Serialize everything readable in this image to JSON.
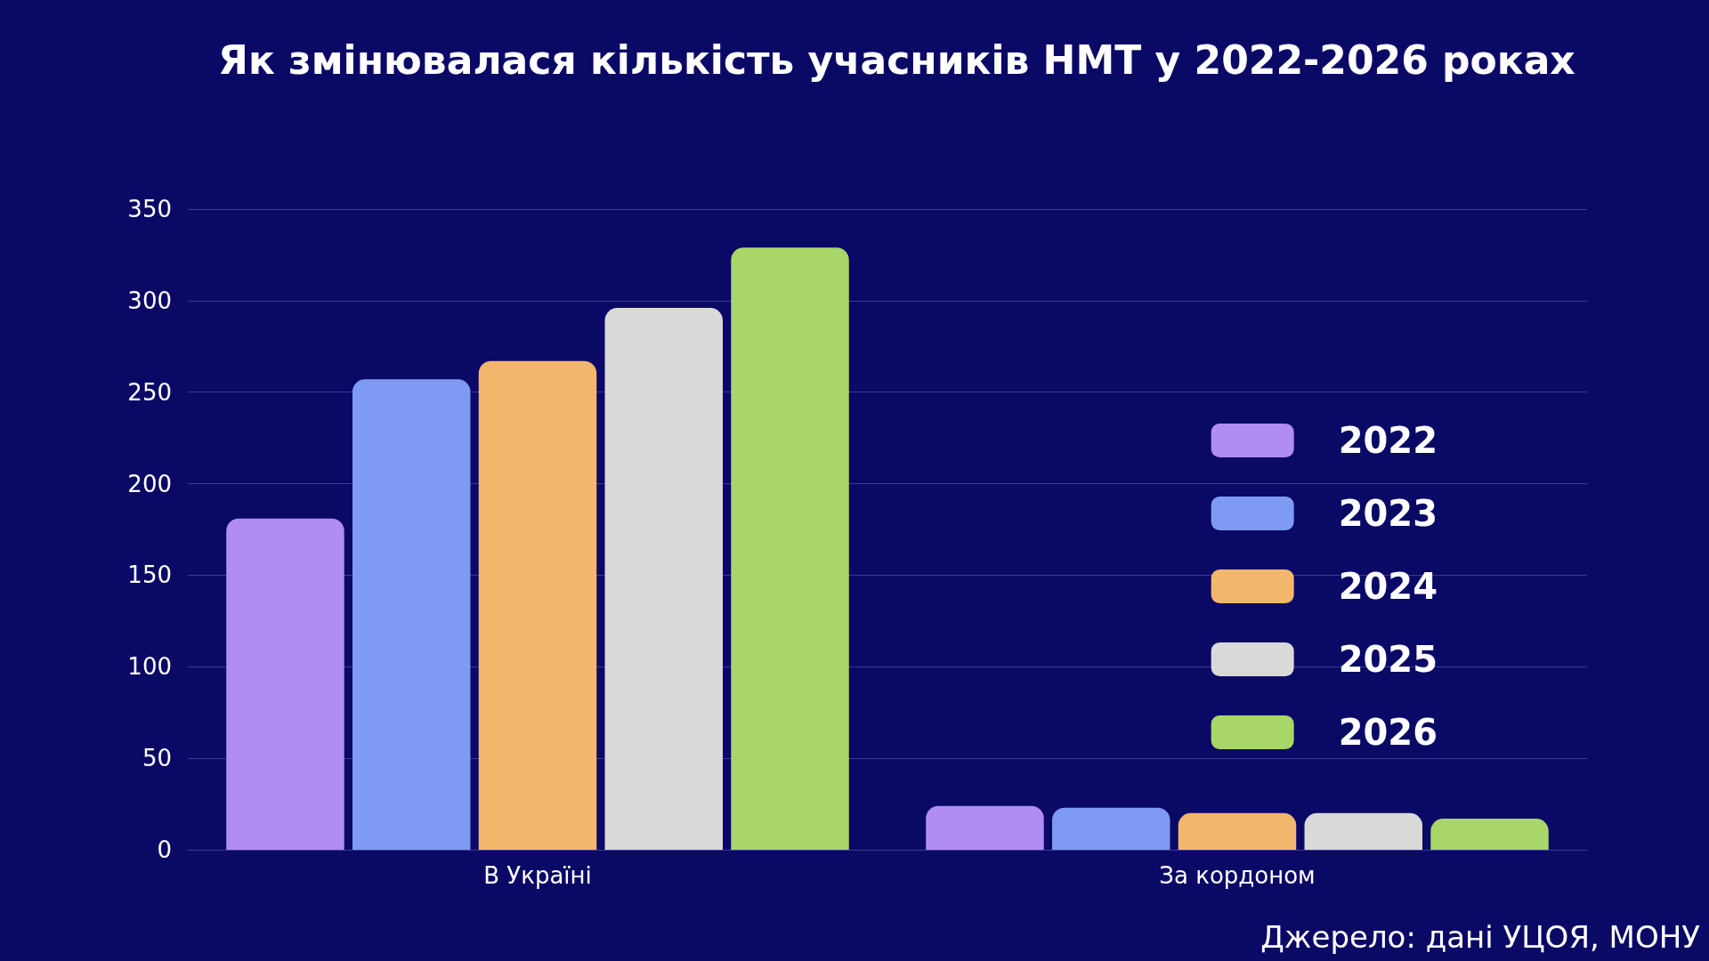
{
  "chart_data": {
    "type": "bar",
    "title": "Як змінювалася кількість учасників НМТ у 2022-2026 роках",
    "categories": [
      "В Україні",
      "За кордоном"
    ],
    "series": [
      {
        "name": "2022",
        "color": "#b08cf3",
        "values": [
          181,
          24
        ]
      },
      {
        "name": "2023",
        "color": "#7f9af3",
        "values": [
          257,
          23
        ]
      },
      {
        "name": "2024",
        "color": "#f3b66d",
        "values": [
          267,
          20
        ]
      },
      {
        "name": "2025",
        "color": "#d9d9d9",
        "values": [
          296,
          20
        ]
      },
      {
        "name": "2026",
        "color": "#a8d667",
        "values": [
          329,
          17
        ]
      }
    ],
    "ylim": [
      0,
      350
    ],
    "yticks": [
      0,
      50,
      100,
      150,
      200,
      250,
      300,
      350
    ],
    "grid": "y",
    "legend": "right",
    "annotations": [
      "Джерело: дані УЦОЯ, МОНУ"
    ]
  }
}
